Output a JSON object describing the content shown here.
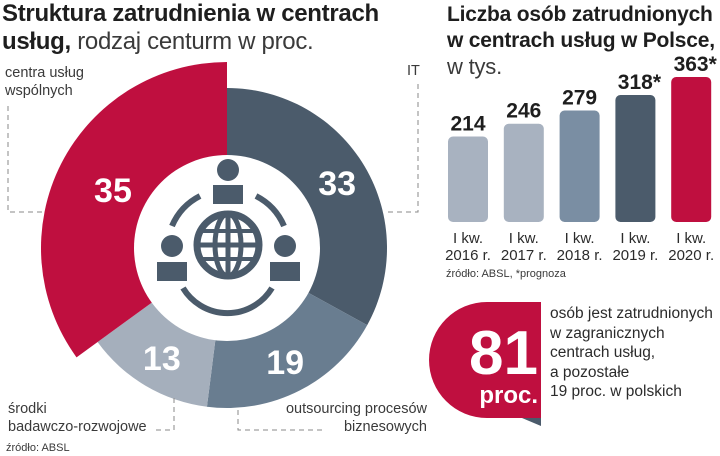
{
  "left_panel": {
    "title_bold": "Struktura zatrudnienia w centrach usług,",
    "title_rest": " rodzaj centurm w proc.",
    "source": "źródło: ABSL"
  },
  "right_panel": {
    "title_bold_line1": "Liczba osób zatrudnionych",
    "title_bold_line2": "w centrach usług w Polsce,",
    "title_rest": "w tys.",
    "source": "źródło: ABSL, *prognoza"
  },
  "badge": {
    "value": "81",
    "unit": "proc.",
    "text_lines": [
      "osób jest zatrudnionych",
      "w zagranicznych",
      "centrach usług,",
      "a pozostałe",
      "19 proc. w polskich"
    ]
  },
  "icons": {
    "center": "people-globe-network-icon"
  },
  "colors": {
    "red": "#bf0f3f",
    "dark_slate": "#4b5b6b",
    "mid_slate": "#697d90",
    "light_slate": "#a5afbc",
    "pale_slate": "#a8b2c0",
    "steel": "#7a8ea3"
  },
  "chart_data": [
    {
      "type": "pie",
      "title": "Struktura zatrudnienia w centrach usług, rodzaj centurm w proc.",
      "unit": "%",
      "slices": [
        {
          "label": "IT",
          "value": 33,
          "color": "#4b5b6b",
          "exploded": false
        },
        {
          "label": "outsourcing procesów biznesowych",
          "value": 19,
          "color": "#697d90",
          "exploded": false
        },
        {
          "label": "środki badawczo-rozwojowe",
          "value": 13,
          "color": "#a5afbc",
          "exploded": false
        },
        {
          "label": "centra usług wspólnych",
          "value": 35,
          "color": "#bf0f3f",
          "exploded": true
        }
      ],
      "labels": {
        "it": "IT",
        "bpo_line1": "outsourcing procesów",
        "bpo_line2": "biznesowych",
        "rd_line1": "środki",
        "rd_line2": "badawczo-rozwojowe",
        "ssc_line1": "centra usług",
        "ssc_line2": "wspólnych"
      },
      "donut": true
    },
    {
      "type": "bar",
      "title": "Liczba osób zatrudnionych w centrach usług w Polsce, w tys.",
      "categories": [
        [
          "I kw.",
          "2016 r."
        ],
        [
          "I kw.",
          "2017 r."
        ],
        [
          "I kw.",
          "2018 r."
        ],
        [
          "I kw.",
          "2019 r."
        ],
        [
          "I kw.",
          "2020 r."
        ]
      ],
      "values": [
        214,
        246,
        279,
        318,
        363
      ],
      "value_labels": [
        "214",
        "246",
        "279",
        "318*",
        "363*"
      ],
      "colors": [
        "#a8b2c0",
        "#a8b2c0",
        "#7a8ea3",
        "#4b5b6b",
        "#bf0f3f"
      ],
      "xlabel": "",
      "ylabel": "w tys.",
      "footnote": "*prognoza"
    }
  ]
}
